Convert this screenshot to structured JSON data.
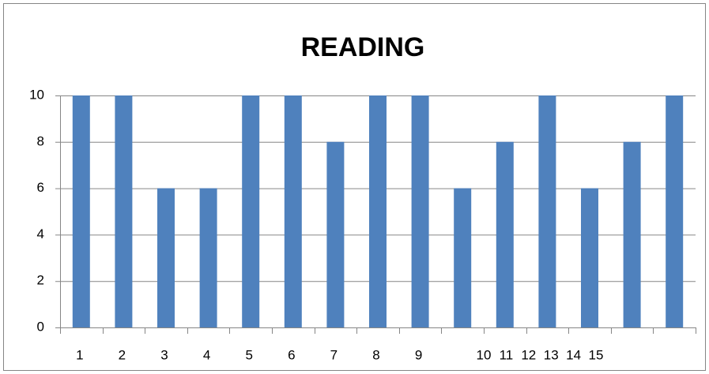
{
  "chart_data": {
    "type": "bar",
    "title": "READING",
    "categories": [
      "1",
      "2",
      "3",
      "4",
      "5",
      "6",
      "7",
      "8",
      "9",
      "10",
      "11",
      "12",
      "13",
      "14",
      "15"
    ],
    "values": [
      10,
      10,
      6,
      6,
      10,
      10,
      8,
      10,
      10,
      6,
      8,
      10,
      6,
      8,
      10
    ],
    "color": "#4f81bd",
    "ylim": [
      0,
      10
    ],
    "yticks": [
      0,
      2,
      4,
      6,
      8,
      10
    ],
    "grid": true
  }
}
